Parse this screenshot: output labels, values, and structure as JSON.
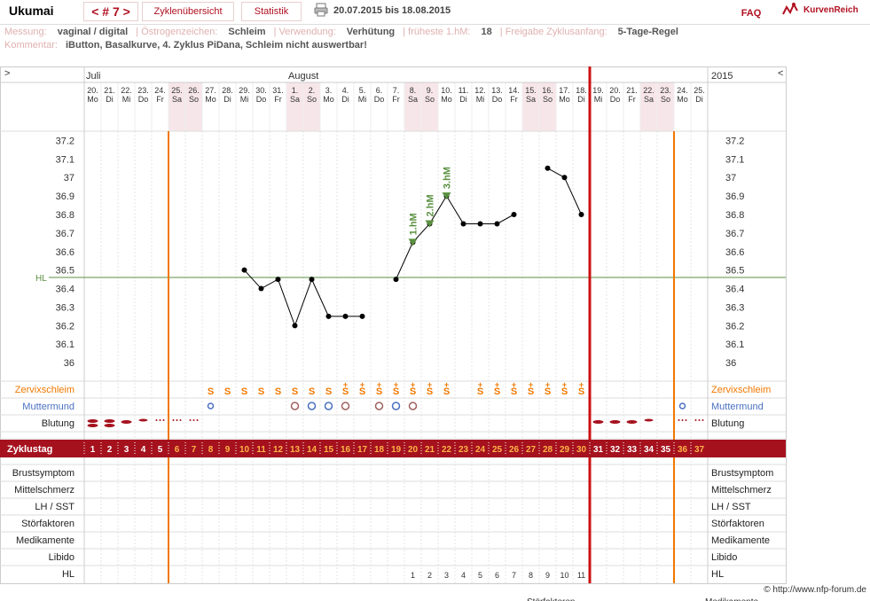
{
  "header": {
    "title": "Ukumai",
    "cycle": "< # 7 >",
    "overview_label": "Zyklenübersicht",
    "stats_label": "Statistik",
    "date_range": "20.07.2015 bis 18.08.2015",
    "faq_label": "FAQ",
    "logo_text": "KurvenReich",
    "print_icon": "printer-icon"
  },
  "info": {
    "line1": [
      {
        "label": "Messung:",
        "value": "vaginal / digital"
      },
      {
        "label": "Östrogenzeichen:",
        "value": "Schleim"
      },
      {
        "label": "Verwendung:",
        "value": "Verhütung"
      },
      {
        "label": "früheste 1.hM:",
        "value": "18"
      },
      {
        "label": "Freigabe Zyklusanfang:",
        "value": "5-Tage-Regel"
      }
    ],
    "comment_label": "Kommentar:",
    "comment": "iButton, Basalkurve, 4. Zyklus PiDana, Schleim nicht auswertbar!"
  },
  "nav": {
    "left": ">",
    "right": "<",
    "year": "2015"
  },
  "months": [
    {
      "name": "Juli",
      "start_day": 0
    },
    {
      "name": "August",
      "start_day": 12
    }
  ],
  "days": [
    {
      "d": "20.",
      "w": "Mo"
    },
    {
      "d": "21.",
      "w": "Di"
    },
    {
      "d": "22.",
      "w": "Mi"
    },
    {
      "d": "23.",
      "w": "Do"
    },
    {
      "d": "24.",
      "w": "Fr"
    },
    {
      "d": "25.",
      "w": "Sa"
    },
    {
      "d": "26.",
      "w": "So"
    },
    {
      "d": "27.",
      "w": "Mo"
    },
    {
      "d": "28.",
      "w": "Di"
    },
    {
      "d": "29.",
      "w": "Mi"
    },
    {
      "d": "30.",
      "w": "Do"
    },
    {
      "d": "31.",
      "w": "Fr"
    },
    {
      "d": "1.",
      "w": "Sa"
    },
    {
      "d": "2.",
      "w": "So"
    },
    {
      "d": "3.",
      "w": "Mo"
    },
    {
      "d": "4.",
      "w": "Di"
    },
    {
      "d": "5.",
      "w": "Mi"
    },
    {
      "d": "6.",
      "w": "Do"
    },
    {
      "d": "7.",
      "w": "Fr"
    },
    {
      "d": "8.",
      "w": "Sa"
    },
    {
      "d": "9.",
      "w": "So"
    },
    {
      "d": "10.",
      "w": "Mo"
    },
    {
      "d": "11.",
      "w": "Di"
    },
    {
      "d": "12.",
      "w": "Mi"
    },
    {
      "d": "13.",
      "w": "Do"
    },
    {
      "d": "14.",
      "w": "Fr"
    },
    {
      "d": "15.",
      "w": "Sa"
    },
    {
      "d": "16.",
      "w": "So"
    },
    {
      "d": "17.",
      "w": "Mo"
    },
    {
      "d": "18.",
      "w": "Di"
    },
    {
      "d": "19.",
      "w": "Mi"
    },
    {
      "d": "20.",
      "w": "Do"
    },
    {
      "d": "21.",
      "w": "Fr"
    },
    {
      "d": "22.",
      "w": "Sa"
    },
    {
      "d": "23.",
      "w": "So"
    },
    {
      "d": "24.",
      "w": "Mo"
    },
    {
      "d": "25.",
      "w": "Di"
    }
  ],
  "chart_data": {
    "type": "line",
    "ylim": [
      35.9,
      37.25
    ],
    "yticks": [
      "37.2",
      "37.1",
      "37",
      "36.9",
      "36.8",
      "36.7",
      "36.6",
      "36.5",
      "36.4",
      "36.3",
      "36.2",
      "36.1",
      "36"
    ],
    "coverline": {
      "label": "HL",
      "value": 36.46
    },
    "series": [
      {
        "x": [
          10,
          11,
          12,
          13,
          14,
          15,
          16,
          17
        ],
        "y": [
          36.5,
          36.4,
          36.45,
          36.2,
          36.45,
          36.25,
          36.25,
          36.25
        ]
      },
      {
        "x": [
          19,
          20,
          21,
          22,
          23,
          24,
          25,
          26
        ],
        "y": [
          36.45,
          36.65,
          36.75,
          36.9,
          36.75,
          36.75,
          36.75,
          36.8
        ]
      },
      {
        "x": [
          28,
          29,
          30
        ],
        "y": [
          37.05,
          37.0,
          36.8
        ]
      }
    ],
    "high_markers": [
      {
        "cycle_day": 20,
        "label": "1.hM"
      },
      {
        "cycle_day": 21,
        "label": "2.hM"
      },
      {
        "cycle_day": 22,
        "label": "3.hM"
      }
    ],
    "cycle_days": [
      "1",
      "2",
      "3",
      "4",
      "5",
      "6",
      "7",
      "8",
      "9",
      "10",
      "11",
      "12",
      "13",
      "14",
      "15",
      "16",
      "17",
      "18",
      "19",
      "20",
      "21",
      "22",
      "23",
      "24",
      "25",
      "26",
      "27",
      "28",
      "29",
      "30",
      "31",
      "32",
      "33",
      "34",
      "35",
      "36",
      "37"
    ],
    "hl_counts": {
      "20": "1",
      "21": "2",
      "22": "3",
      "23": "4",
      "24": "5",
      "25": "6",
      "26": "7",
      "27": "8",
      "28": "9",
      "29": "10",
      "30": "11"
    },
    "mucus": {
      "8": "S",
      "9": "S",
      "10": "S",
      "11": "S",
      "12": "S",
      "13": "S",
      "14": "S",
      "15": "S",
      "16": "S+",
      "17": "S+",
      "18": "S+",
      "19": "S+",
      "20": "S+",
      "21": "S+",
      "22": "S+",
      "24": "S+",
      "25": "S+",
      "26": "S+",
      "27": "S+",
      "28": "S+",
      "29": "S+",
      "30": "S+"
    },
    "cervix": {
      "8": "small",
      "13": "open",
      "14": "closed",
      "15": "closed",
      "16": "open",
      "18": "open",
      "19": "closed",
      "20": "open",
      "36": "small"
    },
    "bleeding": {
      "1": "heavy",
      "2": "heavy",
      "3": "medium",
      "4": "light",
      "5": "spot",
      "6": "spot",
      "7": "spot",
      "31": "medium",
      "32": "medium",
      "33": "medium",
      "34": "light",
      "36": "spot",
      "37": "spot"
    },
    "weekend_cycle_days": [
      6,
      7,
      13,
      14,
      20,
      21,
      27,
      28,
      34,
      35
    ],
    "cycle_end_day": 30,
    "orange_lines_after_day": [
      5,
      35
    ]
  },
  "rows": {
    "zervix": "Zervixschleim",
    "mutter": "Muttermund",
    "blutung": "Blutung",
    "zyklustag": "Zyklustag",
    "symptoms": [
      "Brustsymptom",
      "Mittelschmerz",
      "LH / SST",
      "Störfaktoren",
      "Medikamente",
      "Libido",
      "HL"
    ]
  },
  "colors": {
    "accent": "#a5121e",
    "orange": "#f07800",
    "green": "#5a9040",
    "cycle_end": "#cc1111",
    "weekend": "#f7e6e9",
    "muttermund_closed": "#4a70c0",
    "muttermund_open": "#a06060"
  },
  "footer": {
    "copyright": "© http://www.nfp-forum.de",
    "bottom_left": "Störfaktoren",
    "bottom_right": "Medikamente"
  }
}
